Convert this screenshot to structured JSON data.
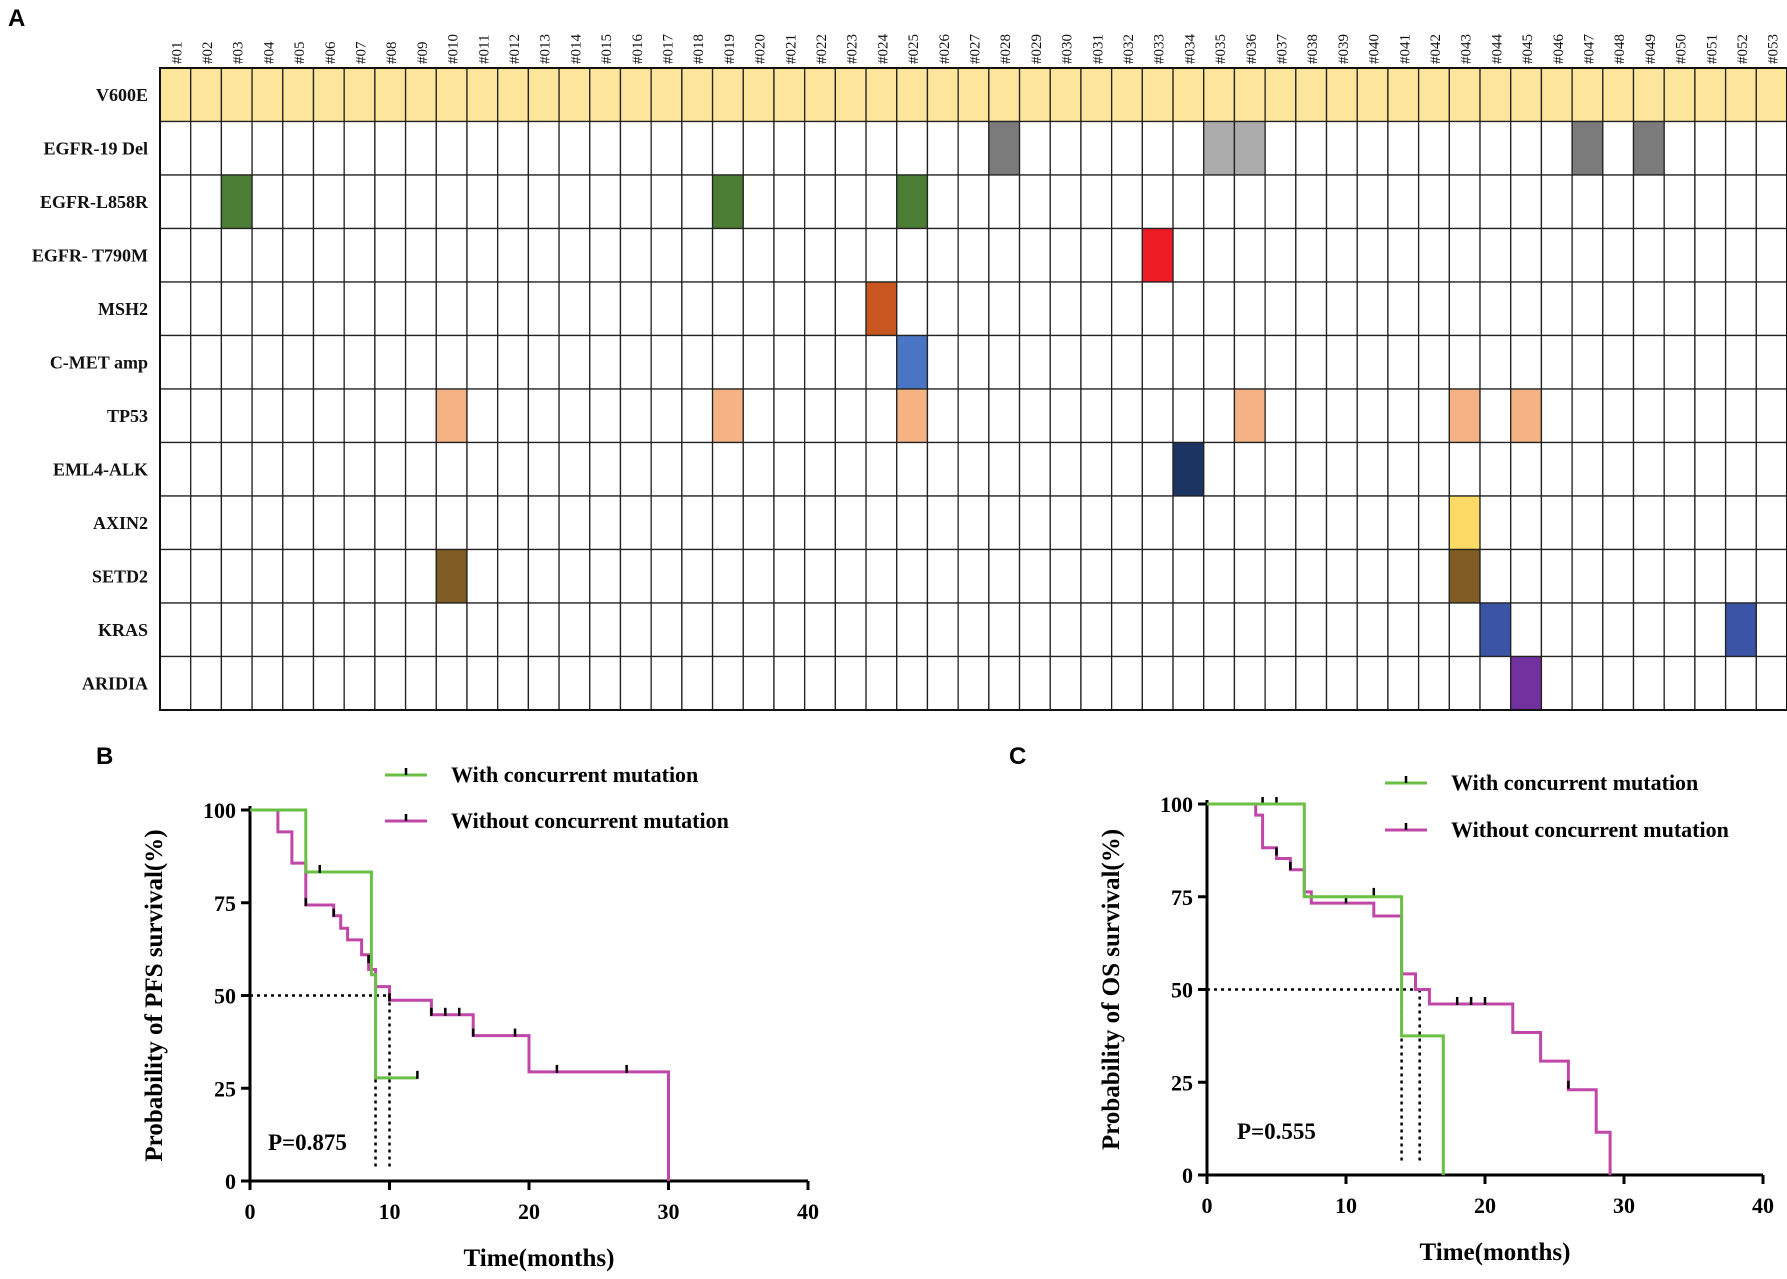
{
  "chart_data": [
    {
      "panel": "A",
      "type": "heatmap",
      "samples": [
        "#01",
        "#02",
        "#03",
        "#04",
        "#05",
        "#06",
        "#07",
        "#08",
        "#09",
        "#010",
        "#011",
        "#012",
        "#013",
        "#014",
        "#015",
        "#016",
        "#017",
        "#018",
        "#019",
        "#020",
        "#021",
        "#022",
        "#023",
        "#024",
        "#025",
        "#026",
        "#027",
        "#028",
        "#029",
        "#030",
        "#031",
        "#032",
        "#033",
        "#034",
        "#035",
        "#036",
        "#037",
        "#038",
        "#039",
        "#040",
        "#041",
        "#042",
        "#043",
        "#044",
        "#045",
        "#046",
        "#047",
        "#048",
        "#049",
        "#050",
        "#051",
        "#052",
        "#053"
      ],
      "genes": [
        {
          "name": "V600E",
          "color": "#fde59c",
          "samples": [
            "#01",
            "#02",
            "#03",
            "#04",
            "#05",
            "#06",
            "#07",
            "#08",
            "#09",
            "#010",
            "#011",
            "#012",
            "#013",
            "#014",
            "#015",
            "#016",
            "#017",
            "#018",
            "#019",
            "#020",
            "#021",
            "#022",
            "#023",
            "#024",
            "#025",
            "#026",
            "#027",
            "#028",
            "#029",
            "#030",
            "#031",
            "#032",
            "#033",
            "#034",
            "#035",
            "#036",
            "#037",
            "#038",
            "#039",
            "#040",
            "#041",
            "#042",
            "#043",
            "#044",
            "#045",
            "#046",
            "#047",
            "#048",
            "#049",
            "#050",
            "#051",
            "#052",
            "#053"
          ]
        },
        {
          "name": "EGFR-19 Del",
          "color": "#7b7b7b",
          "samples": [
            "#028",
            "#047",
            "#049"
          ],
          "alt_color": "#ababab",
          "alt_samples": [
            "#035",
            "#036"
          ]
        },
        {
          "name": "EGFR-L858R",
          "color": "#4c7d35",
          "samples": [
            "#03",
            "#019",
            "#025"
          ]
        },
        {
          "name": "EGFR- T790M",
          "color": "#ee1c25",
          "samples": [
            "#033"
          ]
        },
        {
          "name": "MSH2",
          "color": "#c8561f",
          "samples": [
            "#024"
          ]
        },
        {
          "name": "C-MET amp",
          "color": "#4a75c4",
          "samples": [
            "#025"
          ]
        },
        {
          "name": "TP53",
          "color": "#f5b385",
          "samples": [
            "#010",
            "#019",
            "#025",
            "#036",
            "#043",
            "#045"
          ]
        },
        {
          "name": "EML4-ALK",
          "color": "#1c3461",
          "samples": [
            "#034"
          ]
        },
        {
          "name": "AXIN2",
          "color": "#fdd966",
          "samples": [
            "#043"
          ]
        },
        {
          "name": "SETD2",
          "color": "#7f5c22",
          "samples": [
            "#010",
            "#043"
          ]
        },
        {
          "name": "KRAS",
          "color": "#3c54a5",
          "samples": [
            "#044",
            "#052"
          ]
        },
        {
          "name": "ARIDIA",
          "color": "#7331a0",
          "samples": [
            "#045"
          ]
        }
      ]
    },
    {
      "panel": "B",
      "type": "line",
      "title": "",
      "xlabel": "Time(months)",
      "ylabel": "Probability of PFS survival(%)",
      "xlim": [
        0,
        40
      ],
      "ylim": [
        0,
        100
      ],
      "xticks": [
        0,
        10,
        20,
        30,
        40
      ],
      "yticks": [
        0,
        25,
        50,
        75,
        100
      ],
      "annotation": "P=0.875",
      "median_lines": [
        9,
        10
      ],
      "series": [
        {
          "name": "With concurrent mutation",
          "color": "#6abf45",
          "steps": [
            [
              0,
              100
            ],
            [
              4,
              100
            ],
            [
              4,
              83.3
            ],
            [
              8.7,
              83.3
            ],
            [
              8.7,
              55.6
            ],
            [
              9,
              55.6
            ],
            [
              9,
              27.8
            ],
            [
              12,
              27.8
            ]
          ],
          "censors": [
            [
              5,
              83.3
            ],
            [
              12,
              27.8
            ]
          ]
        },
        {
          "name": "Without concurrent mutation",
          "color": "#c047a8",
          "steps": [
            [
              0,
              100
            ],
            [
              2,
              100
            ],
            [
              2,
              94.1
            ],
            [
              3,
              94.1
            ],
            [
              3,
              85.7
            ],
            [
              4,
              85.7
            ],
            [
              4,
              74.4
            ],
            [
              6,
              74.4
            ],
            [
              6,
              71.5
            ],
            [
              6.5,
              71.5
            ],
            [
              6.5,
              68.1
            ],
            [
              7,
              68.1
            ],
            [
              7,
              65
            ],
            [
              8,
              65
            ],
            [
              8,
              61
            ],
            [
              8.5,
              61
            ],
            [
              8.5,
              57
            ],
            [
              9,
              57
            ],
            [
              9,
              52.4
            ],
            [
              10,
              52.4
            ],
            [
              10,
              48.7
            ],
            [
              13,
              48.7
            ],
            [
              13,
              44.8
            ],
            [
              16,
              44.8
            ],
            [
              16,
              39.2
            ],
            [
              20,
              39.2
            ],
            [
              20,
              29.4
            ],
            [
              30,
              29.4
            ],
            [
              30,
              0
            ]
          ],
          "censors": [
            [
              4,
              74.4
            ],
            [
              6,
              71.5
            ],
            [
              8.5,
              59
            ],
            [
              10,
              48.7
            ],
            [
              13,
              44.8
            ],
            [
              14,
              44.8
            ],
            [
              15,
              44.8
            ],
            [
              16,
              39.2
            ],
            [
              19,
              39.2
            ],
            [
              22,
              29.4
            ],
            [
              27,
              29.4
            ]
          ]
        }
      ]
    },
    {
      "panel": "C",
      "type": "line",
      "title": "",
      "xlabel": "Time(months)",
      "ylabel": "Probability of OS survival(%)",
      "xlim": [
        0,
        40
      ],
      "ylim": [
        0,
        100
      ],
      "xticks": [
        0,
        10,
        20,
        30,
        40
      ],
      "yticks": [
        0,
        25,
        50,
        75,
        100
      ],
      "annotation": "P=0.555",
      "median_lines": [
        14,
        15.3
      ],
      "series": [
        {
          "name": "With concurrent mutation",
          "color": "#6abf45",
          "steps": [
            [
              0,
              100
            ],
            [
              7,
              100
            ],
            [
              7,
              75
            ],
            [
              14,
              75
            ],
            [
              14,
              37.5
            ],
            [
              17,
              37.5
            ],
            [
              17,
              0
            ]
          ],
          "censors": []
        },
        {
          "name": "Without concurrent mutation",
          "color": "#c047a8",
          "steps": [
            [
              0,
              100
            ],
            [
              3.5,
              100
            ],
            [
              3.5,
              97
            ],
            [
              4,
              97
            ],
            [
              4,
              88.2
            ],
            [
              5,
              88.2
            ],
            [
              5,
              85.3
            ],
            [
              6,
              85.3
            ],
            [
              6,
              82.3
            ],
            [
              7,
              82.3
            ],
            [
              7,
              76.3
            ],
            [
              7.5,
              76.3
            ],
            [
              7.5,
              73.3
            ],
            [
              12,
              73.3
            ],
            [
              12,
              69.8
            ],
            [
              14,
              69.8
            ],
            [
              14,
              54.2
            ],
            [
              15,
              54.2
            ],
            [
              15,
              50
            ],
            [
              16,
              50
            ],
            [
              16,
              46.1
            ],
            [
              22,
              46.1
            ],
            [
              22,
              38.4
            ],
            [
              24,
              38.4
            ],
            [
              24,
              30.7
            ],
            [
              26,
              30.7
            ],
            [
              26,
              23
            ],
            [
              28,
              23
            ],
            [
              28,
              11.5
            ],
            [
              29,
              11.5
            ],
            [
              29,
              0
            ]
          ],
          "censors": [
            [
              4,
              100
            ],
            [
              5,
              100
            ],
            [
              5,
              86.4
            ],
            [
              6,
              82.5
            ],
            [
              10,
              73.5
            ],
            [
              12,
              75.5
            ],
            [
              18,
              46.1
            ],
            [
              19,
              46.1
            ],
            [
              20,
              46.1
            ],
            [
              26,
              23.5
            ]
          ]
        }
      ]
    }
  ]
}
